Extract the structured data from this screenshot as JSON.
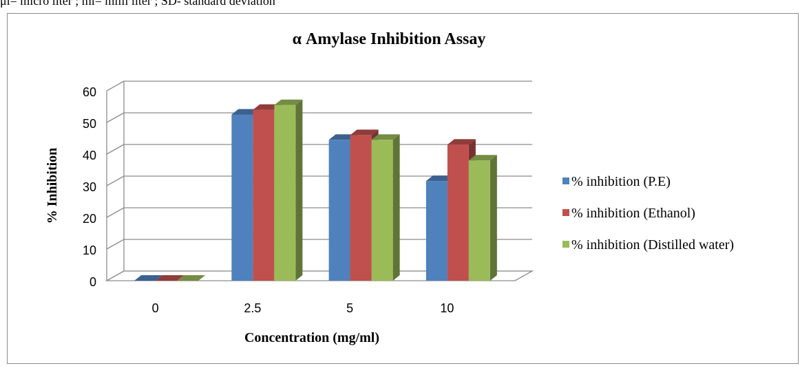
{
  "caption": "μl= micro liter ; ml= milli liter ; SD- standard deviation",
  "chart_data": {
    "type": "bar",
    "title": "α Amylase Inhibition Assay",
    "xlabel": "Concentration (mg/ml)",
    "ylabel": "% Inhibition",
    "categories": [
      "0",
      "2.5",
      "5",
      "10"
    ],
    "ylim": [
      0,
      60
    ],
    "yticks": [
      "0",
      "10",
      "20",
      "30",
      "40",
      "50",
      "60"
    ],
    "grid": true,
    "legend_position": "right",
    "series": [
      {
        "name": "% inhibition (P.E)",
        "values": [
          0,
          52.5,
          44.5,
          31.5
        ],
        "color": "#4f81bd"
      },
      {
        "name": "% inhibition (Ethanol)",
        "values": [
          0,
          54,
          46,
          43
        ],
        "color": "#c0504d"
      },
      {
        "name": "% inhibition (Distilled water)",
        "values": [
          0,
          55.5,
          44.5,
          38
        ],
        "color": "#9bbb59"
      }
    ]
  }
}
